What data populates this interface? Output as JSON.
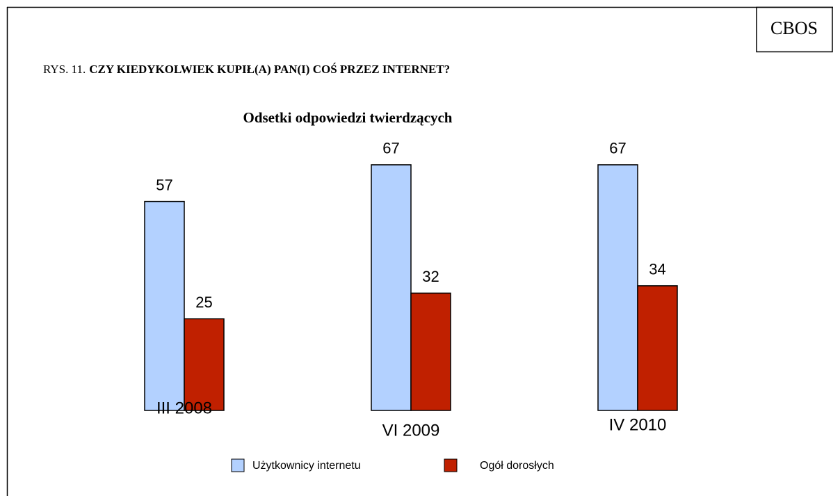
{
  "header": {
    "badge": "CBOS"
  },
  "chart_data": {
    "type": "bar",
    "prefix": "RYS. 11.",
    "title": "CZY KIEDYKOLWIEK KUPIŁ(A) PAN(I) COŚ PRZEZ INTERNET?",
    "subtitle": "Odsetki odpowiedzi twierdzących",
    "categories": [
      "III 2008",
      "VI 2009",
      "IV 2010"
    ],
    "series": [
      {
        "name": "Użytkownicy internetu",
        "color": "#b3d1ff",
        "values": [
          57,
          67,
          67
        ]
      },
      {
        "name": "Ogół dorosłych",
        "color": "#c02000",
        "values": [
          25,
          32,
          34
        ]
      }
    ],
    "legend": "bottom"
  }
}
